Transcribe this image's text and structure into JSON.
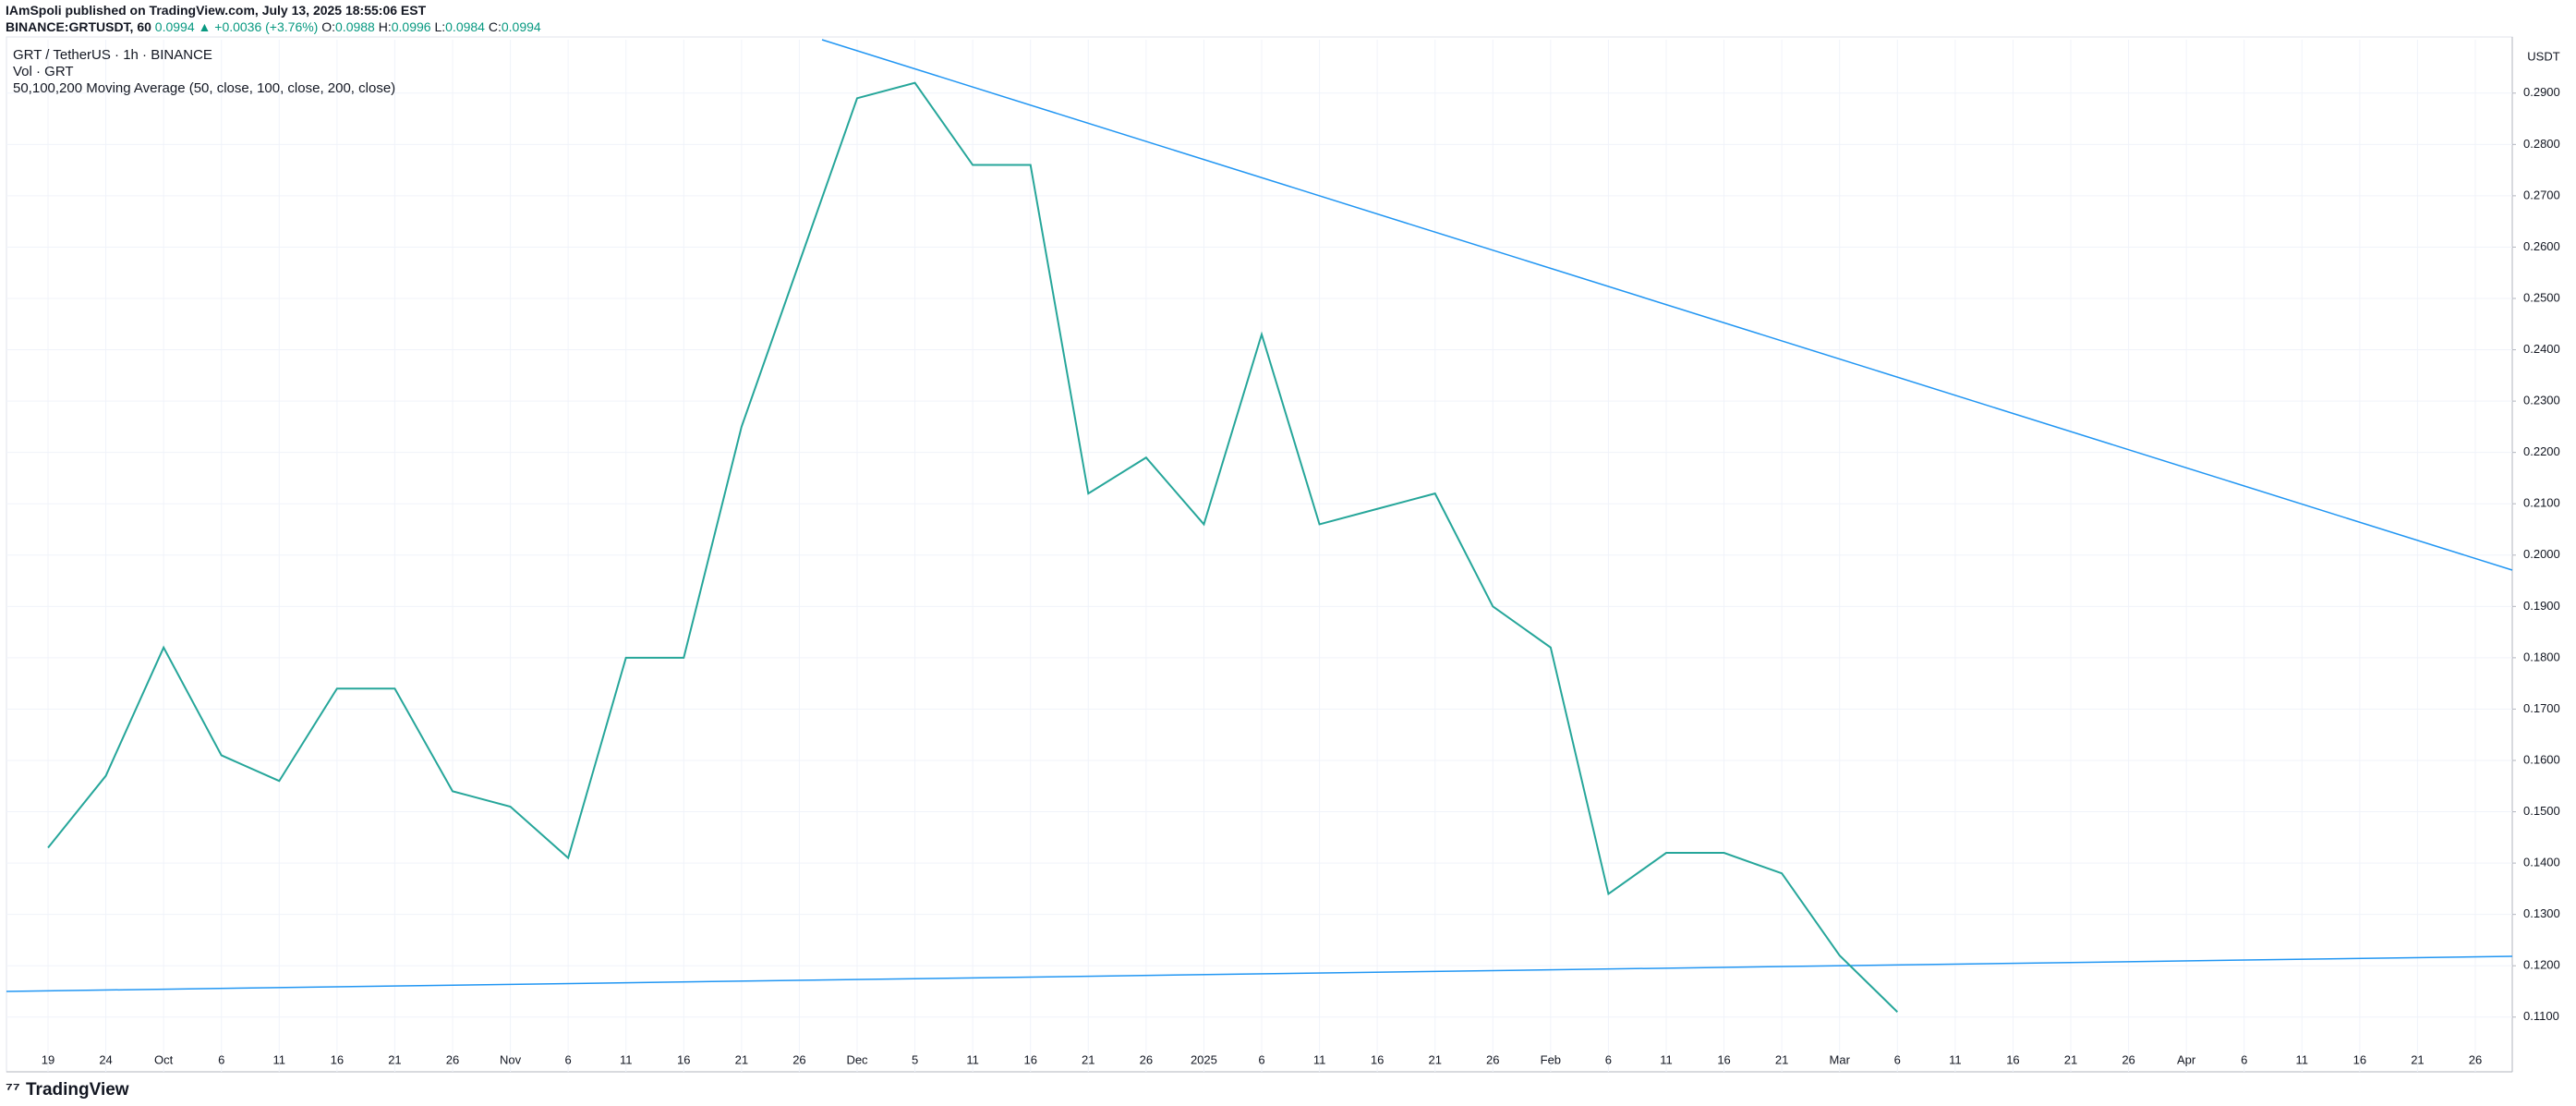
{
  "header": {
    "author_line": "IAmSpoli published on TradingView.com, July 13, 2025 18:55:06 EST",
    "symbol": "BINANCE:GRTUSDT, 60",
    "last": "0.0994",
    "change": "▲ +0.0036 (+3.76%)",
    "o_label": "O:",
    "o": "0.0988",
    "h_label": "H:",
    "h": "0.0996",
    "l_label": "L:",
    "l": "0.0984",
    "c_label": "C:",
    "c": "0.0994"
  },
  "legend": {
    "pair": "GRT / TetherUS · 1h · BINANCE",
    "volume": "Vol · GRT",
    "ma": "50,100,200 Moving Average (50, close, 100, close, 200, close)"
  },
  "footer": {
    "brand": "TradingView"
  },
  "chart_data": {
    "type": "line",
    "y_unit": "USDT",
    "categories": [
      "19",
      "24",
      "Oct",
      "6",
      "11",
      "16",
      "21",
      "26",
      "Nov",
      "6",
      "11",
      "16",
      "21",
      "26",
      "Dec",
      "5",
      "11",
      "16",
      "21",
      "26",
      "2025",
      "6",
      "11",
      "16",
      "21",
      "26",
      "Feb",
      "6",
      "11",
      "16",
      "21",
      "Mar",
      "6",
      "11",
      "16",
      "21",
      "26",
      "Apr",
      "6",
      "11",
      "16",
      "21",
      "26"
    ],
    "series": [
      {
        "name": "GRTUSDT",
        "color": "#26a69a",
        "values": [
          0.143,
          0.157,
          0.182,
          0.161,
          0.156,
          0.174,
          0.174,
          0.154,
          0.151,
          0.141,
          0.18,
          0.18,
          0.225,
          0.257,
          0.289,
          0.292,
          0.276,
          0.276,
          0.212,
          0.219,
          0.206,
          0.243,
          0.206,
          0.209,
          0.212,
          0.19,
          0.182,
          0.134,
          0.142,
          0.142,
          0.138,
          0.122,
          0.111,
          null,
          null,
          null,
          null,
          null,
          null,
          null,
          null,
          null,
          null
        ]
      }
    ],
    "ylim": [
      0.1042,
      0.3004
    ],
    "yticks": [
      {
        "value": 0.11,
        "label": "0.1100"
      },
      {
        "value": 0.12,
        "label": "0.1200"
      },
      {
        "value": 0.13,
        "label": "0.1300"
      },
      {
        "value": 0.14,
        "label": "0.1400"
      },
      {
        "value": 0.15,
        "label": "0.1500"
      },
      {
        "value": 0.16,
        "label": "0.1600"
      },
      {
        "value": 0.17,
        "label": "0.1700"
      },
      {
        "value": 0.18,
        "label": "0.1800"
      },
      {
        "value": 0.19,
        "label": "0.1900"
      },
      {
        "value": 0.2,
        "label": "0.2000"
      },
      {
        "value": 0.21,
        "label": "0.2100"
      },
      {
        "value": 0.22,
        "label": "0.2200"
      },
      {
        "value": 0.23,
        "label": "0.2300"
      },
      {
        "value": 0.24,
        "label": "0.2400"
      },
      {
        "value": 0.25,
        "label": "0.2500"
      },
      {
        "value": 0.26,
        "label": "0.2600"
      },
      {
        "value": 0.27,
        "label": "0.2700"
      },
      {
        "value": 0.28,
        "label": "0.2800"
      },
      {
        "value": 0.29,
        "label": "0.2900"
      }
    ],
    "grid": true
  }
}
